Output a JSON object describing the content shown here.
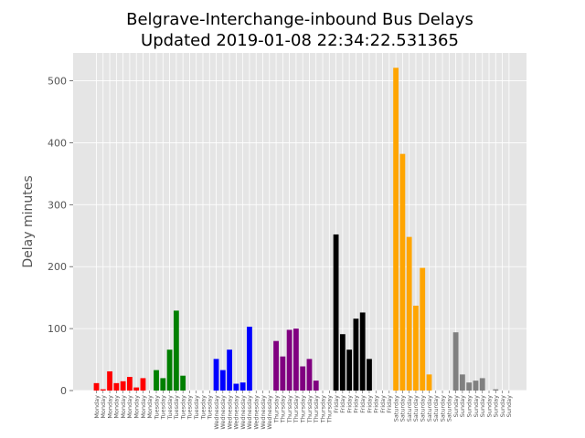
{
  "chart_data": {
    "type": "bar",
    "title_line1": "Belgrave-Interchange-inbound Bus Delays",
    "title_line2": "Updated 2019-01-08 22:34:22.531365",
    "ylabel": "Delay minutes",
    "xlabel": "",
    "ylim": [
      0,
      545
    ],
    "yticks": [
      0,
      100,
      200,
      300,
      400,
      500
    ],
    "grid": true,
    "categories": [
      "Monday",
      "Monday",
      "Monday",
      "Monday",
      "Monday",
      "Monday",
      "Monday",
      "Monday",
      "Monday",
      "Tuesday",
      "Tuesday",
      "Tuesday",
      "Tuesday",
      "Tuesday",
      "Tuesday",
      "Tuesday",
      "Tuesday",
      "Tuesday",
      "Wednesday",
      "Wednesday",
      "Wednesday",
      "Wednesday",
      "Wednesday",
      "Wednesday",
      "Wednesday",
      "Wednesday",
      "Wednesday",
      "Thursday",
      "Thursday",
      "Thursday",
      "Thursday",
      "Thursday",
      "Thursday",
      "Thursday",
      "Thursday",
      "Thursday",
      "Friday",
      "Friday",
      "Friday",
      "Friday",
      "Friday",
      "Friday",
      "Friday",
      "Friday",
      "Friday",
      "Saturday",
      "Saturday",
      "Saturday",
      "Saturday",
      "Saturday",
      "Saturday",
      "Saturday",
      "Saturday",
      "Saturday",
      "Sunday",
      "Sunday",
      "Sunday",
      "Sunday",
      "Sunday",
      "Sunday",
      "Sunday",
      "Sunday",
      "Sunday"
    ],
    "values": [
      12,
      2,
      31,
      12,
      15,
      22,
      5,
      20,
      0,
      33,
      20,
      66,
      129,
      24,
      0,
      0,
      0,
      0,
      51,
      33,
      66,
      11,
      13,
      103,
      0,
      0,
      0,
      80,
      55,
      98,
      100,
      39,
      51,
      16,
      0,
      0,
      252,
      91,
      66,
      116,
      126,
      51,
      0,
      0,
      0,
      521,
      382,
      248,
      137,
      198,
      26,
      0,
      0,
      0,
      94,
      26,
      13,
      16,
      20,
      0,
      2,
      0,
      0
    ],
    "bar_colors": [
      "#ff0000",
      "#ff0000",
      "#ff0000",
      "#ff0000",
      "#ff0000",
      "#ff0000",
      "#ff0000",
      "#ff0000",
      "#ff0000",
      "#008000",
      "#008000",
      "#008000",
      "#008000",
      "#008000",
      "#008000",
      "#008000",
      "#008000",
      "#008000",
      "#0000ff",
      "#0000ff",
      "#0000ff",
      "#0000ff",
      "#0000ff",
      "#0000ff",
      "#0000ff",
      "#0000ff",
      "#0000ff",
      "#800080",
      "#800080",
      "#800080",
      "#800080",
      "#800080",
      "#800080",
      "#800080",
      "#800080",
      "#800080",
      "#000000",
      "#000000",
      "#000000",
      "#000000",
      "#000000",
      "#000000",
      "#000000",
      "#000000",
      "#000000",
      "#ffa500",
      "#ffa500",
      "#ffa500",
      "#ffa500",
      "#ffa500",
      "#ffa500",
      "#ffa500",
      "#ffa500",
      "#ffa500",
      "#808080",
      "#808080",
      "#808080",
      "#808080",
      "#808080",
      "#808080",
      "#808080",
      "#808080",
      "#808080"
    ],
    "background_color": "#e5e5e5",
    "grid_color": "#ffffff"
  }
}
